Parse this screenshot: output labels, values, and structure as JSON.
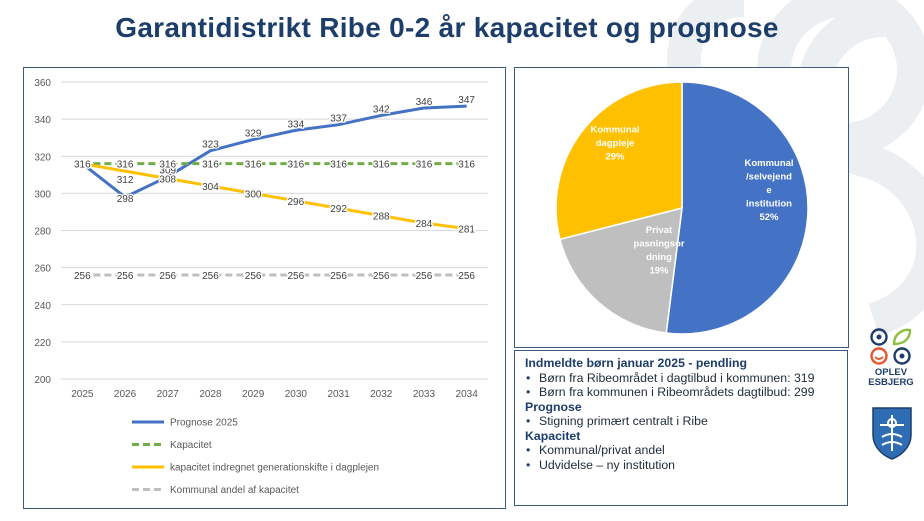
{
  "title": "Garantidistrikt Ribe 0-2 år kapacitet og prognose",
  "chart_data": [
    {
      "type": "line",
      "x": [
        "2025",
        "2026",
        "2027",
        "2028",
        "2029",
        "2030",
        "2031",
        "2032",
        "2033",
        "2034"
      ],
      "ylim": [
        200,
        360
      ],
      "yticks": [
        "200",
        "220",
        "240",
        "260",
        "280",
        "300",
        "320",
        "340",
        "360"
      ],
      "grid": true,
      "legend_position": "bottom",
      "series": [
        {
          "name": "Prognose 2025",
          "color": "#4472c4",
          "dash": false,
          "values": [
            316,
            298,
            309,
            323,
            329,
            334,
            337,
            342,
            346,
            347
          ]
        },
        {
          "name": "Kapacitet",
          "color": "#70ad47",
          "dash": true,
          "values": [
            316,
            316,
            316,
            316,
            316,
            316,
            316,
            316,
            316,
            316
          ]
        },
        {
          "name": "kapacitet indregnet generationskifte i dagplejen",
          "color": "#ffc000",
          "dash": false,
          "values": [
            316,
            312,
            308,
            304,
            300,
            296,
            292,
            288,
            284,
            281
          ]
        },
        {
          "name": "Kommunal andel af kapacitet",
          "color": "#bfbfbf",
          "dash": true,
          "values": [
            256,
            256,
            256,
            256,
            256,
            256,
            256,
            256,
            256,
            256
          ]
        }
      ]
    },
    {
      "type": "pie",
      "slices": [
        {
          "label_lines": [
            "Kommunal",
            "/selvejend",
            "e",
            "institution",
            "52%"
          ],
          "value": 52,
          "color": "#4472c4"
        },
        {
          "label_lines": [
            "Privat",
            "pasningsor",
            "dning",
            "19%"
          ],
          "value": 19,
          "color": "#bfbfbf"
        },
        {
          "label_lines": [
            "Kommunal",
            "dagpleje",
            "29%"
          ],
          "value": 29,
          "color": "#ffc000"
        }
      ]
    }
  ],
  "info": {
    "heading1": "Indmeldte børn januar 2025 -  pendling",
    "items1": [
      "Børn fra Ribeområdet i dagtilbud i kommunen: 319",
      "Børn fra kommunen i Ribeområdets dagtilbud: 299"
    ],
    "heading2": "Prognose",
    "items2": [
      "Stigning primært centralt i Ribe"
    ],
    "heading3": "Kapacitet",
    "items3": [
      "Kommunal/privat andel",
      "Udvidelse – ny institution"
    ]
  },
  "logo": {
    "line1": "OPLEV",
    "line2": "ESBJERG"
  }
}
